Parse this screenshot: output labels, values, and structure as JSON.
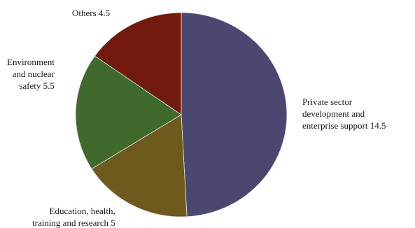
{
  "chart_data": {
    "type": "pie",
    "title": "",
    "slices": [
      {
        "label": "Private sector development and enterprise support",
        "value": 14.5,
        "lines": [
          "Private sector",
          "development and",
          "enterprise support 14.5"
        ],
        "color": "#4a4870"
      },
      {
        "label": "Education, health, training and research",
        "value": 5,
        "lines": [
          "Education, health,",
          "training and research 5"
        ],
        "color": "#6e5a1c"
      },
      {
        "label": "Environment and nuclear safety",
        "value": 5.5,
        "lines": [
          "Environment",
          "and nuclear",
          "safety 5.5"
        ],
        "color": "#3f6a2c"
      },
      {
        "label": "Others",
        "value": 4.5,
        "lines": [
          "Others 4.5"
        ],
        "color": "#731a0e"
      }
    ],
    "start_angle_deg": 0,
    "direction": "clockwise",
    "legend": "none"
  }
}
